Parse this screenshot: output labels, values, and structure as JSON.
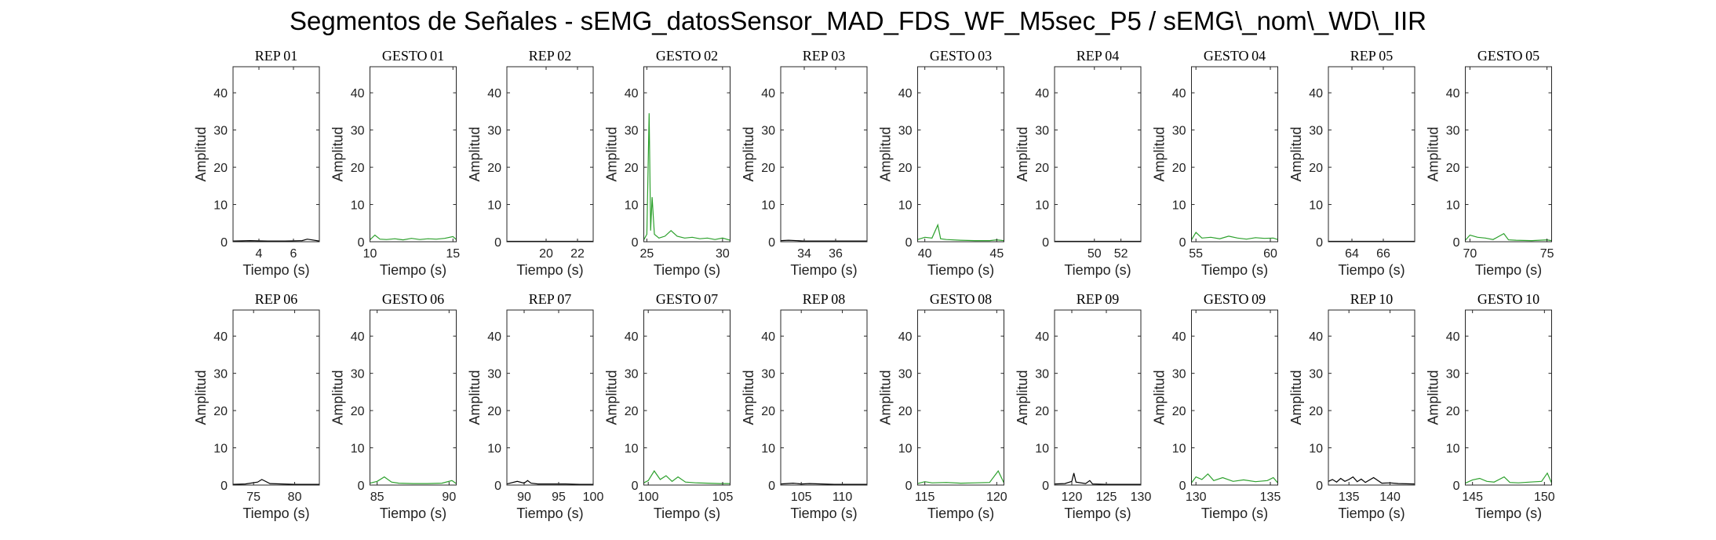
{
  "figure_title": "Segmentos de Señales - sEMG_datosSensor_MAD_FDS_WF_M5sec_P5 / sEMG\\_nom\\_WD\\_IIR",
  "colors": {
    "rep": "#000000",
    "gesto": "#2ca02c",
    "axes": "#262626"
  },
  "chart_data": [
    {
      "type": "line",
      "title": "REP_01",
      "xlabel": "Tiempo (s)",
      "ylabel": "Amplitud",
      "xlim": [
        2.5,
        7.5
      ],
      "xticks": [
        4,
        6
      ],
      "ylim": [
        0,
        47
      ],
      "yticks": [
        0,
        10,
        20,
        30,
        40
      ],
      "series": [
        {
          "kind": "rep",
          "x": [
            2.5,
            3.5,
            4.5,
            5.5,
            6.5,
            6.8,
            7.5
          ],
          "y": [
            0.2,
            0.3,
            0.2,
            0.2,
            0.3,
            0.7,
            0.2
          ]
        }
      ]
    },
    {
      "type": "line",
      "title": "GESTO_01",
      "xlabel": "Tiempo (s)",
      "ylabel": "Amplitud",
      "xlim": [
        10,
        15.2
      ],
      "xticks": [
        10,
        15
      ],
      "ylim": [
        0,
        47
      ],
      "yticks": [
        0,
        10,
        20,
        30,
        40
      ],
      "series": [
        {
          "kind": "gesto",
          "x": [
            10,
            10.3,
            10.6,
            11.0,
            11.5,
            12.0,
            12.5,
            13.0,
            13.5,
            14.0,
            14.5,
            15.0,
            15.2
          ],
          "y": [
            0.5,
            1.8,
            0.7,
            0.6,
            0.8,
            0.5,
            0.9,
            0.6,
            0.8,
            0.7,
            0.9,
            1.4,
            0.6
          ]
        }
      ]
    },
    {
      "type": "line",
      "title": "REP_02",
      "xlabel": "Tiempo (s)",
      "ylabel": "Amplitud",
      "xlim": [
        17.5,
        23
      ],
      "xticks": [
        20,
        22
      ],
      "ylim": [
        0,
        47
      ],
      "yticks": [
        0,
        10,
        20,
        30,
        40
      ],
      "series": [
        {
          "kind": "rep",
          "x": [
            17.5,
            19,
            20.5,
            22,
            23
          ],
          "y": [
            0.1,
            0.1,
            0.1,
            0.1,
            0.1
          ]
        }
      ]
    },
    {
      "type": "line",
      "title": "GESTO_02",
      "xlabel": "Tiempo (s)",
      "ylabel": "Amplitud",
      "xlim": [
        24.8,
        30.5
      ],
      "xticks": [
        25,
        30
      ],
      "ylim": [
        0,
        47
      ],
      "yticks": [
        0,
        10,
        20,
        30,
        40
      ],
      "series": [
        {
          "kind": "gesto",
          "x": [
            24.8,
            25.0,
            25.15,
            25.25,
            25.35,
            25.5,
            25.8,
            26.2,
            26.6,
            27.0,
            27.5,
            28.0,
            28.5,
            29.0,
            29.5,
            30.0,
            30.5
          ],
          "y": [
            0.5,
            2.0,
            34.5,
            3.0,
            12.0,
            2.0,
            1.0,
            1.5,
            3.0,
            1.5,
            1.0,
            1.2,
            0.8,
            1.0,
            0.6,
            1.0,
            0.4
          ]
        }
      ]
    },
    {
      "type": "line",
      "title": "REP_03",
      "xlabel": "Tiempo (s)",
      "ylabel": "Amplitud",
      "xlim": [
        32.5,
        38
      ],
      "xticks": [
        34,
        36
      ],
      "ylim": [
        0,
        47
      ],
      "yticks": [
        0,
        10,
        20,
        30,
        40
      ],
      "series": [
        {
          "kind": "rep",
          "x": [
            32.5,
            33,
            34,
            35,
            36,
            37,
            38
          ],
          "y": [
            0.3,
            0.4,
            0.2,
            0.2,
            0.2,
            0.2,
            0.2
          ]
        }
      ]
    },
    {
      "type": "line",
      "title": "GESTO_03",
      "xlabel": "Tiempo (s)",
      "ylabel": "Amplitud",
      "xlim": [
        39.5,
        45.5
      ],
      "xticks": [
        40,
        45
      ],
      "ylim": [
        0,
        47
      ],
      "yticks": [
        0,
        10,
        20,
        30,
        40
      ],
      "series": [
        {
          "kind": "gesto",
          "x": [
            39.5,
            40.0,
            40.5,
            40.9,
            41.1,
            41.5,
            42.5,
            43.5,
            44.5,
            45.0,
            45.5
          ],
          "y": [
            0.6,
            1.2,
            1.0,
            4.5,
            0.8,
            0.6,
            0.4,
            0.3,
            0.3,
            0.5,
            0.3
          ]
        }
      ]
    },
    {
      "type": "line",
      "title": "REP_04",
      "xlabel": "Tiempo (s)",
      "ylabel": "Amplitud",
      "xlim": [
        47,
        53.5
      ],
      "xticks": [
        50,
        52
      ],
      "ylim": [
        0,
        47
      ],
      "yticks": [
        0,
        10,
        20,
        30,
        40
      ],
      "series": [
        {
          "kind": "rep",
          "x": [
            47,
            49,
            51,
            53.5
          ],
          "y": [
            0.1,
            0.1,
            0.1,
            0.1
          ]
        }
      ]
    },
    {
      "type": "line",
      "title": "GESTO_04",
      "xlabel": "Tiempo (s)",
      "ylabel": "Amplitud",
      "xlim": [
        54.7,
        60.5
      ],
      "xticks": [
        55,
        60
      ],
      "ylim": [
        0,
        47
      ],
      "yticks": [
        0,
        10,
        20,
        30,
        40
      ],
      "series": [
        {
          "kind": "gesto",
          "x": [
            54.7,
            55.0,
            55.4,
            56.0,
            56.6,
            57.2,
            57.8,
            58.4,
            59.0,
            59.6,
            60.2,
            60.5
          ],
          "y": [
            0.5,
            2.5,
            1.0,
            1.2,
            0.8,
            1.5,
            1.0,
            0.7,
            1.1,
            0.9,
            1.0,
            0.6
          ]
        }
      ]
    },
    {
      "type": "line",
      "title": "REP_05",
      "xlabel": "Tiempo (s)",
      "ylabel": "Amplitud",
      "xlim": [
        62.5,
        68
      ],
      "xticks": [
        64,
        66
      ],
      "ylim": [
        0,
        47
      ],
      "yticks": [
        0,
        10,
        20,
        30,
        40
      ],
      "series": [
        {
          "kind": "rep",
          "x": [
            62.5,
            64.5,
            66.5,
            68
          ],
          "y": [
            0.1,
            0.1,
            0.1,
            0.1
          ]
        }
      ]
    },
    {
      "type": "line",
      "title": "GESTO_05",
      "xlabel": "Tiempo (s)",
      "ylabel": "Amplitud",
      "xlim": [
        69.7,
        75.3
      ],
      "xticks": [
        70,
        75
      ],
      "ylim": [
        0,
        47
      ],
      "yticks": [
        0,
        10,
        20,
        30,
        40
      ],
      "series": [
        {
          "kind": "gesto",
          "x": [
            69.7,
            70.0,
            70.5,
            71.0,
            71.5,
            72.2,
            72.5,
            73.0,
            74.0,
            75.0,
            75.3
          ],
          "y": [
            0.4,
            1.8,
            1.2,
            1.0,
            0.6,
            2.2,
            0.5,
            0.4,
            0.3,
            0.5,
            0.3
          ]
        }
      ]
    },
    {
      "type": "line",
      "title": "REP_06",
      "xlabel": "Tiempo (s)",
      "ylabel": "Amplitud",
      "xlim": [
        72.5,
        83
      ],
      "xticks": [
        75,
        80
      ],
      "ylim": [
        0,
        47
      ],
      "yticks": [
        0,
        10,
        20,
        30,
        40
      ],
      "series": [
        {
          "kind": "rep",
          "x": [
            72.5,
            74,
            75.5,
            76,
            77,
            78.5,
            80,
            81.5,
            83
          ],
          "y": [
            0.2,
            0.3,
            0.8,
            1.5,
            0.4,
            0.3,
            0.2,
            0.2,
            0.2
          ]
        }
      ]
    },
    {
      "type": "line",
      "title": "GESTO_06",
      "xlabel": "Tiempo (s)",
      "ylabel": "Amplitud",
      "xlim": [
        84.5,
        90.5
      ],
      "xticks": [
        85,
        90
      ],
      "ylim": [
        0,
        47
      ],
      "yticks": [
        0,
        10,
        20,
        30,
        40
      ],
      "series": [
        {
          "kind": "gesto",
          "x": [
            84.5,
            85.0,
            85.5,
            86.0,
            86.5,
            87.5,
            88.5,
            89.5,
            90.2,
            90.5
          ],
          "y": [
            0.5,
            1.0,
            2.2,
            0.8,
            0.5,
            0.4,
            0.4,
            0.5,
            1.2,
            0.4
          ]
        }
      ]
    },
    {
      "type": "line",
      "title": "REP_07",
      "xlabel": "Tiempo (s)",
      "ylabel": "Amplitud",
      "xlim": [
        87.5,
        100
      ],
      "xticks": [
        90,
        95,
        100
      ],
      "ylim": [
        0,
        47
      ],
      "yticks": [
        0,
        10,
        20,
        30,
        40
      ],
      "series": [
        {
          "kind": "rep",
          "x": [
            87.5,
            89,
            90,
            90.5,
            91,
            92,
            94,
            96,
            98,
            100
          ],
          "y": [
            0.3,
            1.0,
            0.5,
            1.2,
            0.5,
            0.3,
            0.3,
            0.3,
            0.2,
            0.2
          ]
        }
      ]
    },
    {
      "type": "line",
      "title": "GESTO_07",
      "xlabel": "Tiempo (s)",
      "ylabel": "Amplitud",
      "xlim": [
        99.7,
        105.5
      ],
      "xticks": [
        100,
        105
      ],
      "ylim": [
        0,
        47
      ],
      "yticks": [
        0,
        10,
        20,
        30,
        40
      ],
      "series": [
        {
          "kind": "gesto",
          "x": [
            99.7,
            100.0,
            100.4,
            100.8,
            101.2,
            101.6,
            102.0,
            102.5,
            103.2,
            104.0,
            104.8,
            105.5
          ],
          "y": [
            0.6,
            1.2,
            3.8,
            1.5,
            2.5,
            1.0,
            2.2,
            0.8,
            0.6,
            0.5,
            0.4,
            0.4
          ]
        }
      ]
    },
    {
      "type": "line",
      "title": "REP_08",
      "xlabel": "Tiempo (s)",
      "ylabel": "Amplitud",
      "xlim": [
        102.5,
        113
      ],
      "xticks": [
        105,
        110
      ],
      "ylim": [
        0,
        47
      ],
      "yticks": [
        0,
        10,
        20,
        30,
        40
      ],
      "series": [
        {
          "kind": "rep",
          "x": [
            102.5,
            104,
            105,
            106,
            107.5,
            109,
            111,
            113
          ],
          "y": [
            0.3,
            0.5,
            0.3,
            0.4,
            0.3,
            0.2,
            0.2,
            0.2
          ]
        }
      ]
    },
    {
      "type": "line",
      "title": "GESTO_08",
      "xlabel": "Tiempo (s)",
      "ylabel": "Amplitud",
      "xlim": [
        114.5,
        120.5
      ],
      "xticks": [
        115,
        120
      ],
      "ylim": [
        0,
        47
      ],
      "yticks": [
        0,
        10,
        20,
        30,
        40
      ],
      "series": [
        {
          "kind": "gesto",
          "x": [
            114.5,
            115.0,
            115.5,
            116.5,
            117.5,
            118.5,
            119.5,
            120.1,
            120.5
          ],
          "y": [
            0.4,
            0.9,
            0.6,
            0.7,
            0.5,
            0.6,
            0.7,
            3.8,
            0.6
          ]
        }
      ]
    },
    {
      "type": "line",
      "title": "REP_09",
      "xlabel": "Tiempo (s)",
      "ylabel": "Amplitud",
      "xlim": [
        117.5,
        130
      ],
      "xticks": [
        120,
        125,
        130
      ],
      "ylim": [
        0,
        47
      ],
      "yticks": [
        0,
        10,
        20,
        30,
        40
      ],
      "series": [
        {
          "kind": "rep",
          "x": [
            117.5,
            119,
            120,
            120.3,
            120.6,
            122,
            122.6,
            123,
            125,
            127,
            130
          ],
          "y": [
            0.3,
            0.4,
            1.0,
            3.2,
            0.8,
            0.4,
            1.2,
            0.3,
            0.2,
            0.2,
            0.2
          ]
        }
      ]
    },
    {
      "type": "line",
      "title": "GESTO_09",
      "xlabel": "Tiempo (s)",
      "ylabel": "Amplitud",
      "xlim": [
        129.7,
        135.5
      ],
      "xticks": [
        130,
        135
      ],
      "ylim": [
        0,
        47
      ],
      "yticks": [
        0,
        10,
        20,
        30,
        40
      ],
      "series": [
        {
          "kind": "gesto",
          "x": [
            129.7,
            130.0,
            130.4,
            130.8,
            131.2,
            131.8,
            132.5,
            133.2,
            134.0,
            134.8,
            135.2,
            135.5
          ],
          "y": [
            0.6,
            2.2,
            1.5,
            3.0,
            1.2,
            2.0,
            1.0,
            1.4,
            0.9,
            1.2,
            2.0,
            0.6
          ]
        }
      ]
    },
    {
      "type": "line",
      "title": "REP_10",
      "xlabel": "Tiempo (s)",
      "ylabel": "Amplitud",
      "xlim": [
        132.5,
        143
      ],
      "xticks": [
        135,
        140
      ],
      "ylim": [
        0,
        47
      ],
      "yticks": [
        0,
        10,
        20,
        30,
        40
      ],
      "series": [
        {
          "kind": "rep",
          "x": [
            132.5,
            133,
            133.5,
            134,
            134.5,
            135,
            135.5,
            136,
            136.5,
            137,
            138,
            139,
            140,
            141,
            143
          ],
          "y": [
            1.0,
            1.5,
            0.8,
            1.8,
            1.0,
            1.5,
            2.2,
            0.9,
            1.6,
            0.7,
            2.0,
            0.5,
            0.6,
            0.4,
            0.3
          ]
        }
      ]
    },
    {
      "type": "line",
      "title": "GESTO_10",
      "xlabel": "Tiempo (s)",
      "ylabel": "Amplitud",
      "xlim": [
        144.5,
        150.5
      ],
      "xticks": [
        145,
        150
      ],
      "ylim": [
        0,
        47
      ],
      "yticks": [
        0,
        10,
        20,
        30,
        40
      ],
      "series": [
        {
          "kind": "gesto",
          "x": [
            144.5,
            145.0,
            145.5,
            146.0,
            146.5,
            147.2,
            147.6,
            148.2,
            149.0,
            149.8,
            150.2,
            150.5
          ],
          "y": [
            0.5,
            1.4,
            1.8,
            1.0,
            0.8,
            2.2,
            0.7,
            0.6,
            0.8,
            1.0,
            3.2,
            0.6
          ]
        }
      ]
    }
  ]
}
